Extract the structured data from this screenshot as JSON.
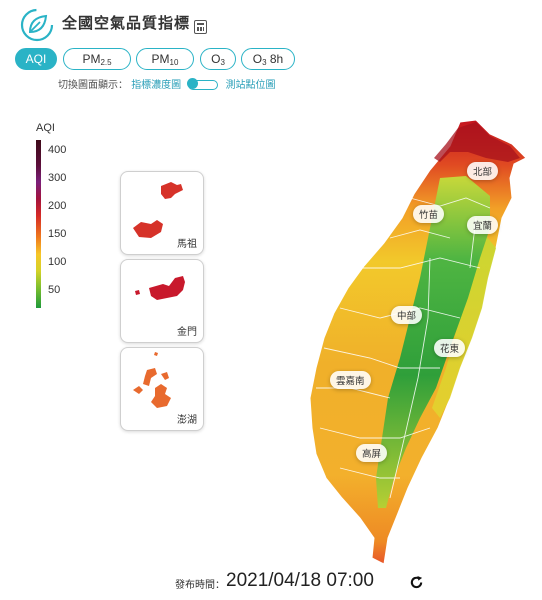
{
  "header": {
    "title": "全國空氣品質指標",
    "logo_icon": "leaf-circle-icon",
    "calc_icon": "calculator-icon"
  },
  "tabs": [
    {
      "key": "aqi",
      "label": "AQI",
      "sub": "",
      "active": true
    },
    {
      "key": "pm25",
      "label": "PM",
      "sub": "2.5",
      "active": false
    },
    {
      "key": "pm10",
      "label": "PM",
      "sub": "10",
      "active": false
    },
    {
      "key": "o3",
      "label": "O",
      "sub": "3",
      "active": false
    },
    {
      "key": "o38h",
      "label": "O",
      "sub": "3",
      "suffix": " 8h",
      "active": false
    }
  ],
  "display_switch": {
    "label": "切換圖面顯示：",
    "left": "指標濃度圖",
    "right": "測站點位圖"
  },
  "legend": {
    "title": "AQI",
    "ticks": [
      "400",
      "300",
      "200",
      "150",
      "100",
      "50"
    ]
  },
  "insets": [
    {
      "name": "馬祖",
      "color": "#d63229"
    },
    {
      "name": "金門",
      "color": "#c8192c"
    },
    {
      "name": "澎湖",
      "color": "#e86a2e"
    }
  ],
  "regions": [
    "北部",
    "竹苗",
    "宜蘭",
    "中部",
    "花東",
    "雲嘉南",
    "高屏"
  ],
  "publish": {
    "label": "發布時間：",
    "time": "2021/04/18 07:00",
    "refresh_icon": "refresh-icon"
  }
}
